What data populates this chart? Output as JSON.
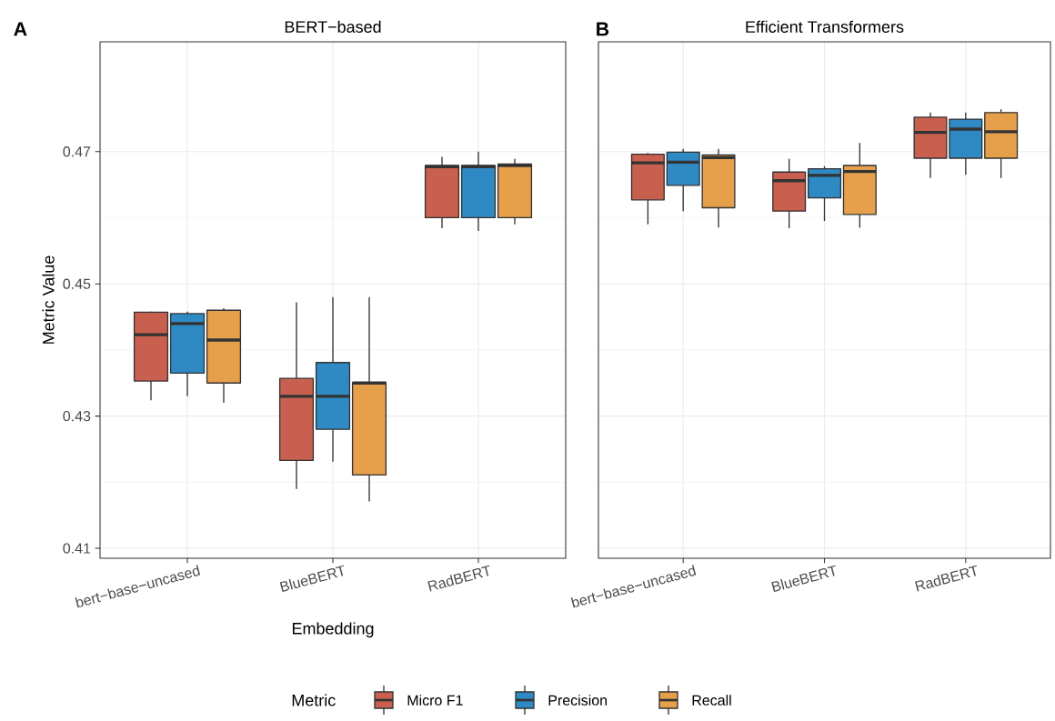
{
  "chart_data": [
    {
      "type": "box",
      "title": "BERT−based",
      "xlabel": "Embedding",
      "ylabel": "Metric Value",
      "legend_title": "Metric",
      "legend": "bottom",
      "grid": true,
      "annotations": [
        "A"
      ],
      "categories": [
        "bert−base−uncased",
        "BlueBERT",
        "RadBERT"
      ],
      "ylim": [
        0.4085,
        0.4866
      ],
      "yticks": [
        0.41,
        0.43,
        0.45,
        0.47
      ],
      "series": [
        {
          "name": "Micro F1",
          "color": "#c9604f",
          "boxes": [
            {
              "low": 0.4324,
              "q1": 0.4353,
              "median": 0.4423,
              "q3": 0.4457,
              "high": 0.4458
            },
            {
              "low": 0.419,
              "q1": 0.4233,
              "median": 0.433,
              "q3": 0.4357,
              "high": 0.4472
            },
            {
              "low": 0.4584,
              "q1": 0.46,
              "median": 0.4677,
              "q3": 0.4679,
              "high": 0.4692
            }
          ]
        },
        {
          "name": "Precision",
          "color": "#2f8ac4",
          "boxes": [
            {
              "low": 0.433,
              "q1": 0.4365,
              "median": 0.444,
              "q3": 0.4455,
              "high": 0.4458
            },
            {
              "low": 0.4231,
              "q1": 0.428,
              "median": 0.433,
              "q3": 0.4381,
              "high": 0.448
            },
            {
              "low": 0.458,
              "q1": 0.46,
              "median": 0.4677,
              "q3": 0.4679,
              "high": 0.47
            }
          ]
        },
        {
          "name": "Recall",
          "color": "#e6a04c",
          "boxes": [
            {
              "low": 0.432,
              "q1": 0.435,
              "median": 0.4415,
              "q3": 0.446,
              "high": 0.4463
            },
            {
              "low": 0.4171,
              "q1": 0.4211,
              "median": 0.435,
              "q3": 0.4351,
              "high": 0.448
            },
            {
              "low": 0.459,
              "q1": 0.46,
              "median": 0.4679,
              "q3": 0.4681,
              "high": 0.4689
            }
          ]
        }
      ]
    },
    {
      "type": "box",
      "title": "Efficient Transformers",
      "grid": true,
      "annotations": [
        "B"
      ],
      "tick_labels": "x",
      "categories": [
        "bert−base−uncased",
        "BlueBERT",
        "RadBERT"
      ],
      "ylim": [
        0.4085,
        0.4866
      ],
      "yticks": [
        0.41,
        0.43,
        0.45,
        0.47
      ],
      "series": [
        {
          "color": "#c9604f",
          "boxes": [
            {
              "low": 0.459,
              "q1": 0.4627,
              "median": 0.4683,
              "q3": 0.4696,
              "high": 0.4698
            },
            {
              "low": 0.4584,
              "q1": 0.461,
              "median": 0.4656,
              "q3": 0.4669,
              "high": 0.4689
            },
            {
              "low": 0.466,
              "q1": 0.469,
              "median": 0.4729,
              "q3": 0.4752,
              "high": 0.4759
            }
          ]
        },
        {
          "color": "#2f8ac4",
          "boxes": [
            {
              "low": 0.461,
              "q1": 0.4649,
              "median": 0.4684,
              "q3": 0.4699,
              "high": 0.4704
            },
            {
              "low": 0.4595,
              "q1": 0.463,
              "median": 0.4664,
              "q3": 0.4674,
              "high": 0.4678
            },
            {
              "low": 0.4665,
              "q1": 0.469,
              "median": 0.4734,
              "q3": 0.4749,
              "high": 0.4759
            }
          ]
        },
        {
          "color": "#e6a04c",
          "boxes": [
            {
              "low": 0.4585,
              "q1": 0.4615,
              "median": 0.4691,
              "q3": 0.4695,
              "high": 0.4704
            },
            {
              "low": 0.4585,
              "q1": 0.4605,
              "median": 0.467,
              "q3": 0.4679,
              "high": 0.4713
            },
            {
              "low": 0.466,
              "q1": 0.469,
              "median": 0.473,
              "q3": 0.4759,
              "high": 0.4764
            }
          ]
        }
      ]
    }
  ]
}
